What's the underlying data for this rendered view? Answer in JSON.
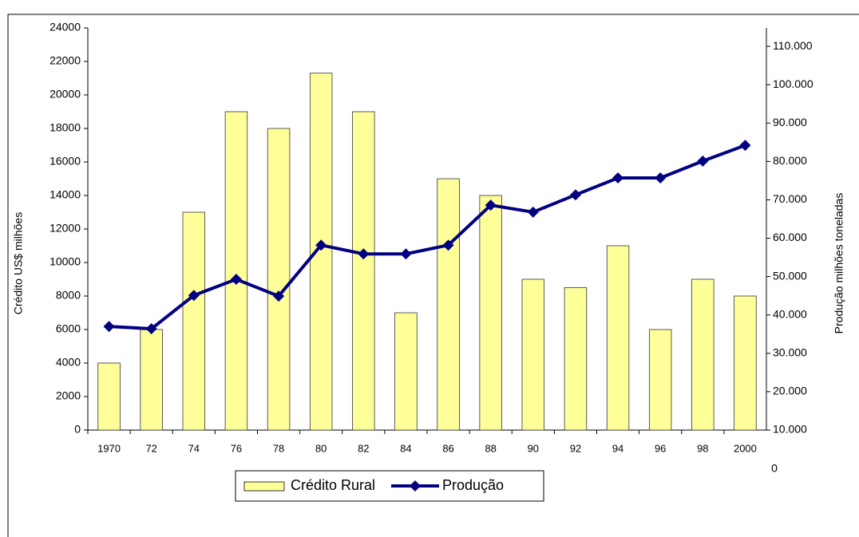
{
  "chart_data": {
    "type": "bar-line",
    "ylabel": "Crédito US$ milhões",
    "y2label": "Produção milhões toneladas",
    "annotation": "0",
    "categories": [
      "1970",
      "72",
      "74",
      "76",
      "78",
      "80",
      "82",
      "84",
      "86",
      "88",
      "90",
      "92",
      "94",
      "96",
      "98",
      "2000"
    ],
    "series": [
      {
        "name": "Crédito Rural",
        "type": "bar",
        "color": "#ffff99",
        "values": [
          4000,
          6000,
          13000,
          19000,
          18000,
          21300,
          19000,
          7000,
          15000,
          14000,
          9000,
          8500,
          11000,
          6000,
          9000,
          8000
        ]
      },
      {
        "name": "Produção",
        "type": "line",
        "axis": "y2",
        "color": "#000080",
        "values": [
          37000,
          36400,
          45100,
          49300,
          44900,
          58200,
          55900,
          55900,
          58200,
          68600,
          66800,
          71300,
          75700,
          75700,
          80100,
          84200
        ]
      }
    ],
    "ylim": [
      0,
      24000
    ],
    "yticks": [
      0,
      2000,
      4000,
      6000,
      8000,
      10000,
      12000,
      14000,
      16000,
      18000,
      20000,
      22000,
      24000
    ],
    "y2lim": [
      10000,
      114800
    ],
    "y2ticks": [
      {
        "value": 10000,
        "label": "10.000"
      },
      {
        "value": 20000,
        "label": "20.000"
      },
      {
        "value": 30000,
        "label": "30.000"
      },
      {
        "value": 40000,
        "label": "40.000"
      },
      {
        "value": 50000,
        "label": "50.000"
      },
      {
        "value": 60000,
        "label": "60.000"
      },
      {
        "value": 70000,
        "label": "70.000"
      },
      {
        "value": 80000,
        "label": "80.000"
      },
      {
        "value": 90000,
        "label": "90.000"
      },
      {
        "value": 100000,
        "label": "100.000"
      },
      {
        "value": 110000,
        "label": "110.000"
      }
    ],
    "legend": "bottom"
  }
}
